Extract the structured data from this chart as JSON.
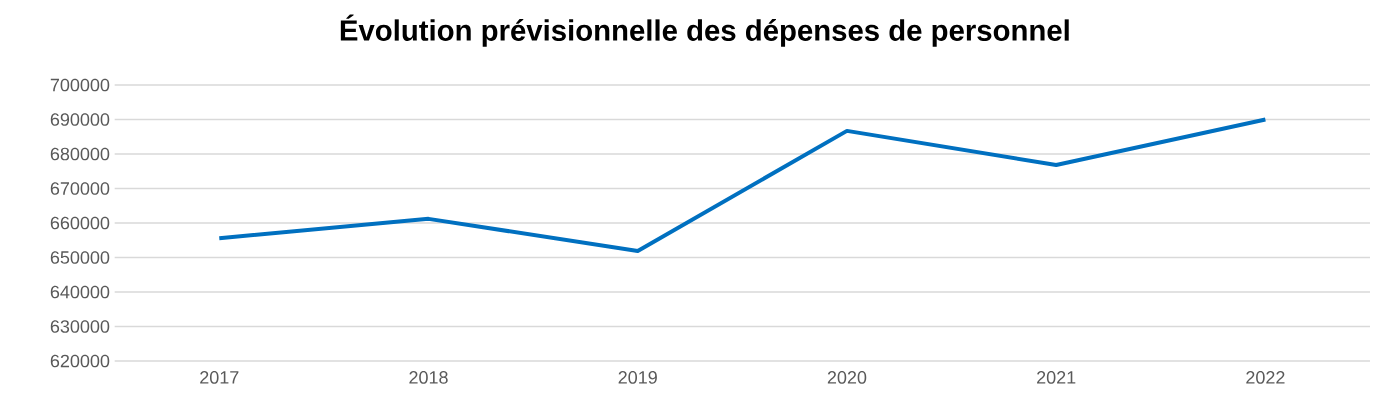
{
  "chart_data": {
    "type": "line",
    "title": "Évolution prévisionnelle des dépenses de personnel",
    "categories": [
      "2017",
      "2018",
      "2019",
      "2020",
      "2021",
      "2022"
    ],
    "series": [
      {
        "color": "#0070c0",
        "values": [
          655600,
          661200,
          651900,
          686700,
          676800,
          690000
        ]
      }
    ],
    "ylim": [
      620000,
      700000
    ],
    "yticks": [
      620000,
      630000,
      640000,
      650000,
      660000,
      670000,
      680000,
      690000,
      700000
    ],
    "grid": "y",
    "marker": "none",
    "line_style": "solid"
  }
}
